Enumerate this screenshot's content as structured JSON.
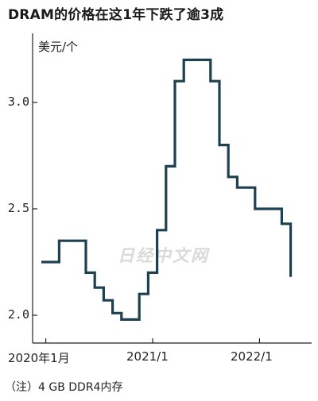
{
  "watermark": "日经中文网",
  "chart_data": {
    "type": "line",
    "title": "DRAM的价格在这1年下跌了逾3成",
    "ylabel": "美元/个",
    "footnote": "（注）4 GB DDR4内存",
    "step": true,
    "ylim": [
      1.93,
      3.27
    ],
    "xlim": [
      0,
      30
    ],
    "y_ticks": [
      {
        "value": 2.0,
        "label": "2.0"
      },
      {
        "value": 2.5,
        "label": "2.5"
      },
      {
        "value": 3.0,
        "label": "3.0"
      }
    ],
    "x_ticks": [
      {
        "value": 0.5,
        "label": "2020年1月"
      },
      {
        "value": 12.5,
        "label": "2021/1"
      },
      {
        "value": 24.5,
        "label": "2022/1"
      }
    ],
    "series": [
      {
        "color": "#1f4050",
        "x": [
          0,
          1,
          2,
          3,
          4,
          5,
          6,
          7,
          8,
          9,
          10,
          11,
          12,
          13,
          14,
          15,
          16,
          17,
          18,
          19,
          20,
          21,
          22,
          23,
          24,
          25,
          26,
          27
        ],
        "values": [
          2.25,
          2.25,
          2.35,
          2.35,
          2.35,
          2.2,
          2.13,
          2.07,
          2.01,
          1.98,
          1.98,
          2.1,
          2.2,
          2.4,
          2.7,
          3.1,
          3.2,
          3.2,
          3.2,
          3.1,
          2.8,
          2.65,
          2.6,
          2.6,
          2.5,
          2.5,
          2.5,
          2.43
        ]
      }
    ],
    "last_point": {
      "x": 28,
      "value": 2.18
    }
  }
}
